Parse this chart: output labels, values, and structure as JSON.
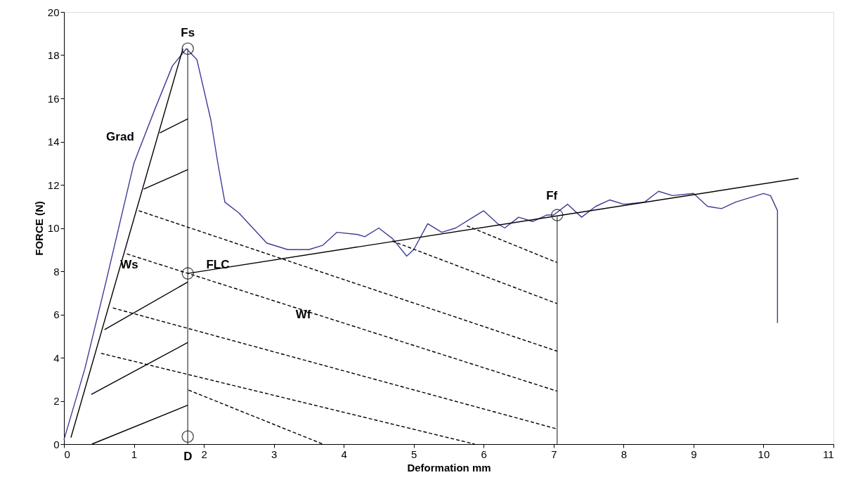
{
  "chart_data": {
    "type": "line",
    "xlabel": "Deformation mm",
    "ylabel": "FORCE (N)",
    "xlim": [
      0,
      11
    ],
    "ylim": [
      0,
      20
    ],
    "xticks": [
      0,
      1,
      2,
      3,
      4,
      5,
      6,
      7,
      8,
      9,
      10,
      11
    ],
    "yticks": [
      0,
      2,
      4,
      6,
      8,
      10,
      12,
      14,
      16,
      18,
      20
    ],
    "grid": false,
    "series": [
      {
        "color": "#3c3c96",
        "x": [
          0,
          0.3,
          0.6,
          1.0,
          1.3,
          1.55,
          1.75,
          1.9,
          2.1,
          2.2,
          2.3,
          2.5,
          2.7,
          2.9,
          3.2,
          3.5,
          3.7,
          3.9,
          4.2,
          4.3,
          4.5,
          4.7,
          4.9,
          5.0,
          5.2,
          5.4,
          5.6,
          5.8,
          6.0,
          6.2,
          6.3,
          6.5,
          6.7,
          6.9,
          7.0,
          7.2,
          7.4,
          7.6,
          7.8,
          8.0,
          8.3,
          8.5,
          8.7,
          9.0,
          9.2,
          9.4,
          9.6,
          10.0,
          10.1,
          10.2,
          10.2
        ],
        "values": [
          0.2,
          3.5,
          7.5,
          13,
          15.5,
          17.5,
          18.3,
          17.8,
          15,
          13,
          11.2,
          10.7,
          10,
          9.3,
          9.0,
          9.0,
          9.2,
          9.8,
          9.7,
          9.6,
          10,
          9.5,
          8.7,
          9.0,
          10.2,
          9.8,
          10.0,
          10.4,
          10.8,
          10.2,
          10.0,
          10.5,
          10.3,
          10.6,
          10.6,
          11.1,
          10.5,
          11.0,
          11.3,
          11.1,
          11.2,
          11.7,
          11.5,
          11.6,
          11.0,
          10.9,
          11.2,
          11.6,
          11.5,
          10.8,
          5.6
        ]
      },
      {
        "color": "#000000",
        "x": [
          0.1,
          1.7
        ],
        "values": [
          0.3,
          18.3
        ]
      },
      {
        "color": "#000000",
        "x": [
          1.77,
          10.5
        ],
        "values": [
          7.9,
          12.3
        ]
      },
      {
        "color": "#555555",
        "x": [
          1.77,
          1.77,
          null,
          7.05,
          7.05
        ],
        "values": [
          0,
          18.3,
          null,
          0,
          10.6
        ]
      },
      {
        "color": "#000000",
        "x": [
          1.37,
          1.77,
          null,
          1.14,
          1.77,
          null,
          0.58,
          1.77,
          null,
          0.39,
          1.77,
          null,
          0.4,
          1.77
        ],
        "values": [
          14.4,
          15.05,
          null,
          11.8,
          12.7,
          null,
          5.3,
          7.5,
          null,
          2.3,
          4.7,
          null,
          0,
          1.8
        ]
      },
      {
        "color": "#000000",
        "line_style": "dashed",
        "x": [
          1.07,
          7.05,
          null,
          0.9,
          7.05,
          null,
          0.7,
          7.05,
          null,
          0.53,
          5.87,
          null,
          1.78,
          3.7,
          null,
          4.69,
          7.05,
          null,
          5.76,
          7.05
        ],
        "values": [
          10.8,
          4.3,
          null,
          8.8,
          2.45,
          null,
          6.3,
          0.7,
          null,
          4.2,
          0,
          null,
          2.5,
          0,
          null,
          9.4,
          6.5,
          null,
          10.1,
          8.4
        ]
      },
      {
        "type": "scatter",
        "marker": "circle",
        "color": "#000000",
        "x": [
          1.77,
          1.77,
          1.77,
          7.05
        ],
        "values": [
          18.3,
          7.9,
          0.35,
          10.6
        ]
      }
    ],
    "annotations": [
      "Fs",
      "FLC",
      "Ff",
      "D",
      "Grad",
      "Ws",
      "Wf"
    ]
  }
}
